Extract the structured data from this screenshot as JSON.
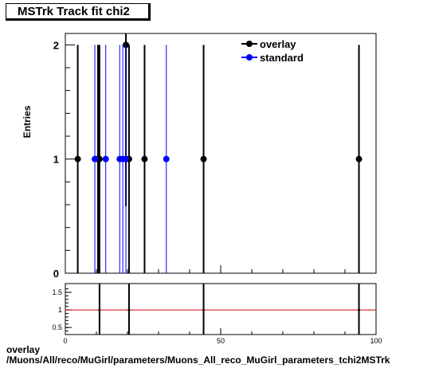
{
  "title": "MSTrk Track fit chi2",
  "caption_line1": "overlay",
  "caption_line2": "/Muons/All/reco/MuGirl/parameters/Muons_All_reco_MuGirl_parameters_tchi2MSTrk",
  "colors": {
    "overlay": "#000000",
    "standard": "#0000ff",
    "ratio_line": "#cc0000"
  },
  "chart_data": [
    {
      "type": "scatter",
      "ylabel": "Entries",
      "xlim": [
        0,
        100
      ],
      "ylim": [
        0,
        2.1
      ],
      "yticks": [
        "0",
        "1",
        "2"
      ],
      "legend_position": "top-right",
      "series": [
        {
          "name": "overlay",
          "color": "#000000",
          "points": [
            [
              4,
              1
            ],
            [
              10.5,
              1
            ],
            [
              11,
              1
            ],
            [
              19.5,
              2
            ],
            [
              20.5,
              1
            ],
            [
              25.5,
              1
            ],
            [
              44.5,
              1
            ],
            [
              94.5,
              1
            ]
          ]
        },
        {
          "name": "standard",
          "color": "#0000ff",
          "points": [
            [
              9.5,
              1
            ],
            [
              13,
              1
            ],
            [
              17.5,
              1
            ],
            [
              18.5,
              1
            ],
            [
              19.5,
              1
            ],
            [
              32.5,
              1
            ]
          ]
        }
      ]
    },
    {
      "type": "scatter",
      "xlim": [
        0,
        100
      ],
      "ylim": [
        0.3,
        1.75
      ],
      "yticks": [
        "0.5",
        "1",
        "1.5"
      ],
      "xticks": [
        "0",
        "50",
        "100"
      ],
      "reference_line": 1,
      "points": [
        [
          11,
          1
        ],
        [
          20.5,
          1
        ],
        [
          44.5,
          1
        ],
        [
          94.5,
          1
        ]
      ]
    }
  ]
}
